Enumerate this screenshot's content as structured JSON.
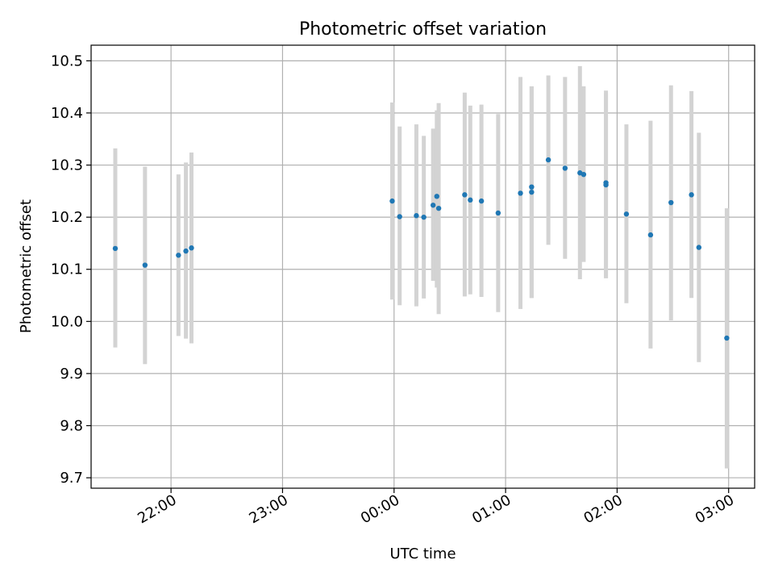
{
  "chart_data": {
    "type": "scatter",
    "title": "Photometric offset variation",
    "xlabel": "UTC time",
    "ylabel": "Photometric offset",
    "x_tick_labels": [
      "22:00",
      "23:00",
      "00:00",
      "01:00",
      "02:00",
      "03:00"
    ],
    "y_tick_labels": [
      "9.7",
      "9.8",
      "9.9",
      "10.0",
      "10.1",
      "10.2",
      "10.3",
      "10.4",
      "10.5"
    ],
    "xlim": [
      "21:17",
      "03:14"
    ],
    "ylim": [
      9.68,
      10.53
    ],
    "grid": true,
    "colors": {
      "point": "#1f77b4",
      "errorbar": "#d3d3d3"
    },
    "points": [
      {
        "x": "21:30",
        "y": 10.14,
        "ylow": 9.95,
        "yhigh": 10.332
      },
      {
        "x": "21:46",
        "y": 10.108,
        "ylow": 9.918,
        "yhigh": 10.297
      },
      {
        "x": "22:04",
        "y": 10.127,
        "ylow": 9.972,
        "yhigh": 10.282
      },
      {
        "x": "22:08",
        "y": 10.135,
        "ylow": 9.967,
        "yhigh": 10.305
      },
      {
        "x": "22:11",
        "y": 10.141,
        "ylow": 9.958,
        "yhigh": 10.324
      },
      {
        "x": "23:59",
        "y": 10.231,
        "ylow": 10.042,
        "yhigh": 10.42
      },
      {
        "x": "00:03",
        "y": 10.201,
        "ylow": 10.031,
        "yhigh": 10.374
      },
      {
        "x": "00:12",
        "y": 10.203,
        "ylow": 10.029,
        "yhigh": 10.378
      },
      {
        "x": "00:16",
        "y": 10.2,
        "ylow": 10.044,
        "yhigh": 10.356
      },
      {
        "x": "00:21",
        "y": 10.223,
        "ylow": 10.078,
        "yhigh": 10.37
      },
      {
        "x": "00:23",
        "y": 10.24,
        "ylow": 10.065,
        "yhigh": 10.405
      },
      {
        "x": "00:24",
        "y": 10.217,
        "ylow": 10.014,
        "yhigh": 10.419
      },
      {
        "x": "00:38",
        "y": 10.243,
        "ylow": 10.048,
        "yhigh": 10.439
      },
      {
        "x": "00:41",
        "y": 10.233,
        "ylow": 10.052,
        "yhigh": 10.414
      },
      {
        "x": "00:47",
        "y": 10.231,
        "ylow": 10.047,
        "yhigh": 10.416
      },
      {
        "x": "00:56",
        "y": 10.208,
        "ylow": 10.018,
        "yhigh": 10.398
      },
      {
        "x": "01:08",
        "y": 10.246,
        "ylow": 10.024,
        "yhigh": 10.469
      },
      {
        "x": "01:14",
        "y": 10.258,
        "ylow": 10.045,
        "yhigh": 10.451
      },
      {
        "x": "01:14",
        "y": 10.248,
        "ylow": 10.045,
        "yhigh": 10.451
      },
      {
        "x": "01:23",
        "y": 10.31,
        "ylow": 10.147,
        "yhigh": 10.472
      },
      {
        "x": "01:32",
        "y": 10.294,
        "ylow": 10.12,
        "yhigh": 10.469
      },
      {
        "x": "01:40",
        "y": 10.285,
        "ylow": 10.081,
        "yhigh": 10.49
      },
      {
        "x": "01:42",
        "y": 10.282,
        "ylow": 10.114,
        "yhigh": 10.451
      },
      {
        "x": "01:54",
        "y": 10.266,
        "ylow": 10.083,
        "yhigh": 10.443
      },
      {
        "x": "01:54",
        "y": 10.262,
        "ylow": 10.083,
        "yhigh": 10.437
      },
      {
        "x": "02:05",
        "y": 10.206,
        "ylow": 10.035,
        "yhigh": 10.378
      },
      {
        "x": "02:18",
        "y": 10.166,
        "ylow": 9.948,
        "yhigh": 10.385
      },
      {
        "x": "02:29",
        "y": 10.228,
        "ylow": 10.002,
        "yhigh": 10.453
      },
      {
        "x": "02:40",
        "y": 10.243,
        "ylow": 10.045,
        "yhigh": 10.442
      },
      {
        "x": "02:44",
        "y": 10.142,
        "ylow": 9.922,
        "yhigh": 10.362
      },
      {
        "x": "02:59",
        "y": 9.968,
        "ylow": 9.718,
        "yhigh": 10.217
      }
    ]
  }
}
